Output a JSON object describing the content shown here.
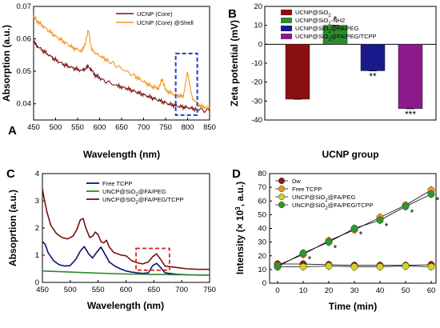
{
  "chart_data": [
    {
      "panel": "A",
      "type": "line",
      "xlabel": "Wavelength (nm)",
      "ylabel": "Absorption (a.u.)",
      "xlim": [
        450,
        850
      ],
      "ylim": [
        0.035,
        0.07
      ],
      "xticks": [
        "450",
        "500",
        "550",
        "600",
        "650",
        "700",
        "750",
        "800",
        "850"
      ],
      "yticks": [
        "0.04",
        "0.05",
        "0.06",
        "0.07"
      ],
      "legend_position": "top-right",
      "highlight_box": {
        "x_range": [
          773,
          822
        ],
        "y_range": [
          0.0365,
          0.0555
        ],
        "color": "#1f3fd0"
      },
      "series": [
        {
          "name": "UCNP (Core)",
          "color": "#7a1010",
          "x": [
            450,
            460,
            480,
            500,
            520,
            540,
            560,
            575,
            590,
            610,
            640,
            660,
            680,
            700,
            720,
            740,
            760,
            780,
            800,
            820,
            850
          ],
          "y": [
            0.059,
            0.0575,
            0.0555,
            0.0535,
            0.052,
            0.051,
            0.0502,
            0.0515,
            0.0488,
            0.0472,
            0.0455,
            0.0448,
            0.0438,
            0.0428,
            0.0418,
            0.0408,
            0.0398,
            0.0392,
            0.0388,
            0.0383,
            0.0378
          ]
        },
        {
          "name": "UCNP (Core) @Shell",
          "color": "#f0961e",
          "x": [
            450,
            460,
            480,
            500,
            520,
            540,
            560,
            568,
            575,
            582,
            600,
            620,
            650,
            680,
            700,
            720,
            735,
            742,
            750,
            770,
            790,
            800,
            810,
            830,
            850
          ],
          "y": [
            0.0668,
            0.0652,
            0.063,
            0.0608,
            0.059,
            0.0572,
            0.0562,
            0.059,
            0.0628,
            0.0565,
            0.0548,
            0.0532,
            0.0508,
            0.0485,
            0.0468,
            0.0452,
            0.0448,
            0.0478,
            0.0442,
            0.0428,
            0.0422,
            0.0498,
            0.0418,
            0.0392,
            0.0388
          ]
        }
      ]
    },
    {
      "panel": "B",
      "type": "bar",
      "xlabel": "UCNP group",
      "ylabel": "Zeta potential (mV)",
      "ylim": [
        -40,
        20
      ],
      "yticks": [
        "-40",
        "-30",
        "-20",
        "-10",
        "0",
        "10",
        "20"
      ],
      "legend_position": "top",
      "categories": [
        "UCNP@SiO₂",
        "UCNP@SiO₂-NH2",
        "UCNP@SiO₂@FA/PEG",
        "UCNP@SiO₂@FA/PEG/TCPP"
      ],
      "values": [
        -29,
        10,
        -14,
        -34
      ],
      "colors": [
        "#8b1010",
        "#2e8b2e",
        "#1a1a8c",
        "#8b1a8b"
      ],
      "significance": [
        "",
        "*",
        "**",
        "***"
      ]
    },
    {
      "panel": "C",
      "type": "line",
      "xlabel": "Wavelength (nm)",
      "ylabel": "Absoprtion (a.u.)",
      "xlim": [
        450,
        750
      ],
      "ylim": [
        0,
        4
      ],
      "xticks": [
        "450",
        "500",
        "550",
        "600",
        "650",
        "700",
        "750"
      ],
      "yticks": [
        "0",
        "1",
        "2",
        "3",
        "4"
      ],
      "legend_position": "top-right",
      "highlight_box": {
        "x_range": [
          618,
          678
        ],
        "y_range": [
          0.45,
          1.25
        ],
        "color": "#e02020"
      },
      "series": [
        {
          "name": "Free TCPP",
          "color": "#10106e",
          "x": [
            450,
            455,
            460,
            470,
            480,
            490,
            500,
            510,
            518,
            525,
            533,
            540,
            548,
            555,
            562,
            570,
            580,
            590,
            600,
            610,
            620,
            630,
            640,
            648,
            655,
            662,
            670,
            690,
            710,
            730,
            750
          ],
          "y": [
            1.5,
            1.4,
            1.1,
            0.8,
            0.65,
            0.6,
            0.62,
            0.85,
            1.15,
            1.32,
            1.05,
            0.9,
            1.12,
            1.3,
            1.05,
            0.75,
            0.6,
            0.5,
            0.42,
            0.38,
            0.35,
            0.33,
            0.35,
            0.62,
            0.7,
            0.55,
            0.35,
            0.3,
            0.28,
            0.27,
            0.27
          ]
        },
        {
          "name": "UNCP@SiO₂@FA/PEG",
          "color": "#2a8a2a",
          "x": [
            450,
            500,
            550,
            600,
            650,
            700,
            750
          ],
          "y": [
            0.42,
            0.38,
            0.34,
            0.31,
            0.29,
            0.28,
            0.27
          ]
        },
        {
          "name": "UNCP@SiO₂@FA/PEG/TCPP",
          "color": "#7a1010",
          "x": [
            450,
            453,
            458,
            465,
            475,
            485,
            495,
            505,
            512,
            518,
            523,
            528,
            535,
            540,
            545,
            550,
            555,
            560,
            565,
            570,
            578,
            585,
            592,
            600,
            610,
            620,
            630,
            640,
            648,
            655,
            662,
            670,
            690,
            710,
            730,
            750
          ],
          "y": [
            3.45,
            3.1,
            2.6,
            2.1,
            1.8,
            1.65,
            1.6,
            1.7,
            1.95,
            2.3,
            2.35,
            2.0,
            1.65,
            1.7,
            1.85,
            1.75,
            1.5,
            1.45,
            1.55,
            1.3,
            1.1,
            1.05,
            1.0,
            0.98,
            0.8,
            0.72,
            0.68,
            0.75,
            0.95,
            1.05,
            0.85,
            0.6,
            0.55,
            0.5,
            0.48,
            0.48
          ]
        }
      ]
    },
    {
      "panel": "D",
      "type": "scatter",
      "xlabel": "Time (min)",
      "ylabel": "Intensity (× 10³, a.u.)",
      "xlim": [
        0,
        60
      ],
      "ylim": [
        0,
        80
      ],
      "xticks": [
        "0",
        "10",
        "20",
        "30",
        "40",
        "50",
        "60"
      ],
      "yticks": [
        "0",
        "10",
        "20",
        "30",
        "40",
        "50",
        "60",
        "70",
        "80"
      ],
      "legend_position": "top-left",
      "x": [
        0,
        10,
        20,
        30,
        40,
        50,
        60
      ],
      "series": [
        {
          "name": "Dw",
          "color": "#8b1a10",
          "y": [
            14,
            14,
            13.5,
            13,
            13,
            13,
            13.5
          ]
        },
        {
          "name": "Free TCPP",
          "color": "#f0961e",
          "y": [
            13,
            21,
            31,
            39,
            48,
            57,
            68
          ]
        },
        {
          "name": "UNCP@SiO₂@FA/PEG",
          "color": "#d8d41a",
          "y": [
            12,
            12,
            12.5,
            12,
            12,
            12.5,
            12
          ]
        },
        {
          "name": "UNCP@SiO₂@FA/PEG/TCPP",
          "color": "#2a9a2a",
          "y": [
            12,
            22,
            30,
            40,
            46,
            56,
            65
          ]
        }
      ],
      "significance": {
        "x": [
          10,
          20,
          30,
          40,
          50,
          60
        ],
        "label": "*"
      }
    }
  ]
}
